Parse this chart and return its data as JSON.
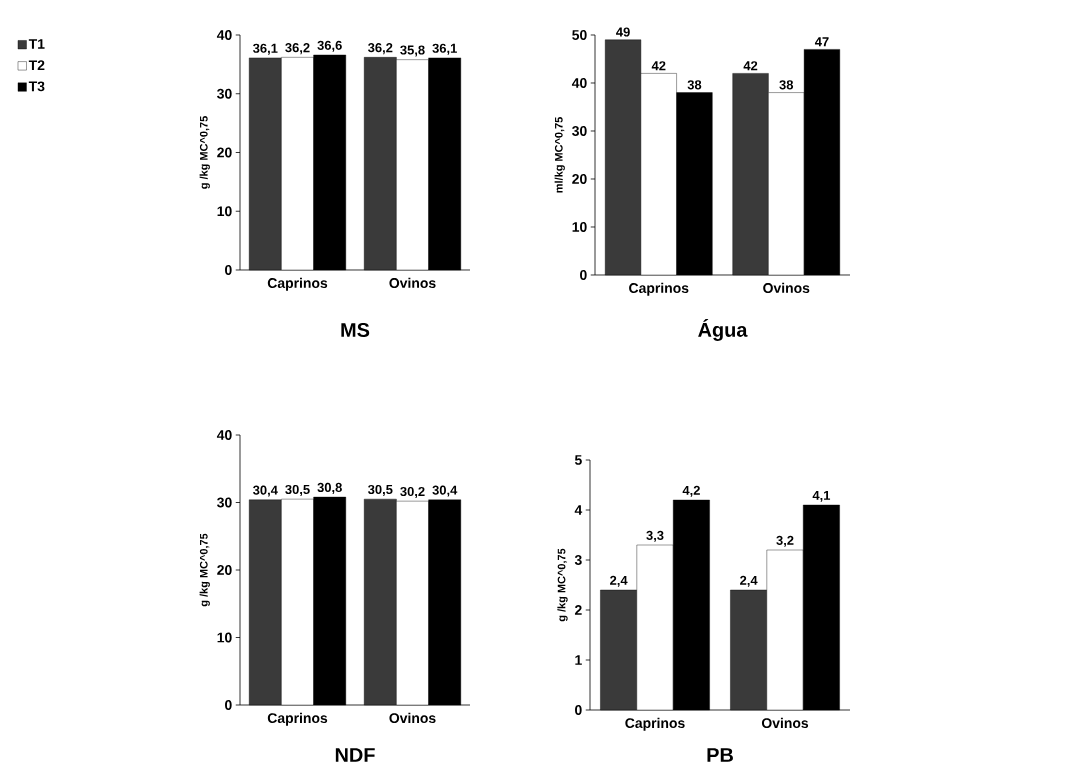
{
  "chart_data": [
    {
      "type": "bar",
      "title": "MS",
      "ylabel": "g /kg MC^0,75",
      "categories": [
        "Caprinos",
        "Ovinos"
      ],
      "ylim": [
        0,
        40
      ],
      "yticks": [
        0,
        10,
        20,
        30,
        40
      ],
      "legend": "left",
      "series": [
        {
          "name": "T1",
          "color": "#3a3a3a",
          "values": [
            36.1,
            36.2
          ],
          "value_labels": [
            "36,1",
            "36,2"
          ]
        },
        {
          "name": "T2",
          "color": "#ffffff",
          "values": [
            36.2,
            35.8
          ],
          "value_labels": [
            "36,2",
            "35,8"
          ]
        },
        {
          "name": "T3",
          "color": "#000000",
          "values": [
            36.6,
            36.1
          ],
          "value_labels": [
            "36,6",
            "36,1"
          ]
        }
      ]
    },
    {
      "type": "bar",
      "title": "Água",
      "ylabel": "ml/kg MC^0,75",
      "categories": [
        "Caprinos",
        "Ovinos"
      ],
      "ylim": [
        0,
        50
      ],
      "yticks": [
        0,
        10,
        20,
        30,
        40,
        50
      ],
      "series": [
        {
          "color": "#3a3a3a",
          "values": [
            49,
            42
          ],
          "value_labels": [
            "49",
            "42"
          ]
        },
        {
          "color": "#ffffff",
          "values": [
            42,
            38
          ],
          "value_labels": [
            "42",
            "38"
          ]
        },
        {
          "color": "#000000",
          "values": [
            38,
            47
          ],
          "value_labels": [
            "38",
            "47"
          ]
        }
      ]
    },
    {
      "type": "bar",
      "title": "NDF",
      "ylabel": "g /kg MC^0,75",
      "categories": [
        "Caprinos",
        "Ovinos"
      ],
      "ylim": [
        0,
        40
      ],
      "yticks": [
        0,
        10,
        20,
        30,
        40
      ],
      "series": [
        {
          "color": "#3a3a3a",
          "values": [
            30.4,
            30.5
          ],
          "value_labels": [
            "30,4",
            "30,5"
          ]
        },
        {
          "color": "#ffffff",
          "values": [
            30.5,
            30.2
          ],
          "value_labels": [
            "30,5",
            "30,2"
          ]
        },
        {
          "color": "#000000",
          "values": [
            30.8,
            30.4
          ],
          "value_labels": [
            "30,8",
            "30,4"
          ]
        }
      ]
    },
    {
      "type": "bar",
      "title": "PB",
      "ylabel": "g /kg MC^0,75",
      "categories": [
        "Caprinos",
        "Ovinos"
      ],
      "ylim": [
        0,
        5
      ],
      "yticks": [
        0,
        1,
        2,
        3,
        4,
        5
      ],
      "series": [
        {
          "color": "#3a3a3a",
          "values": [
            2.4,
            2.4
          ],
          "value_labels": [
            "2,4",
            "2,4"
          ]
        },
        {
          "color": "#ffffff",
          "values": [
            3.3,
            3.2
          ],
          "value_labels": [
            "3,3",
            "3,2"
          ]
        },
        {
          "color": "#000000",
          "values": [
            4.2,
            4.1
          ],
          "value_labels": [
            "4,2",
            "4,1"
          ]
        }
      ]
    }
  ]
}
